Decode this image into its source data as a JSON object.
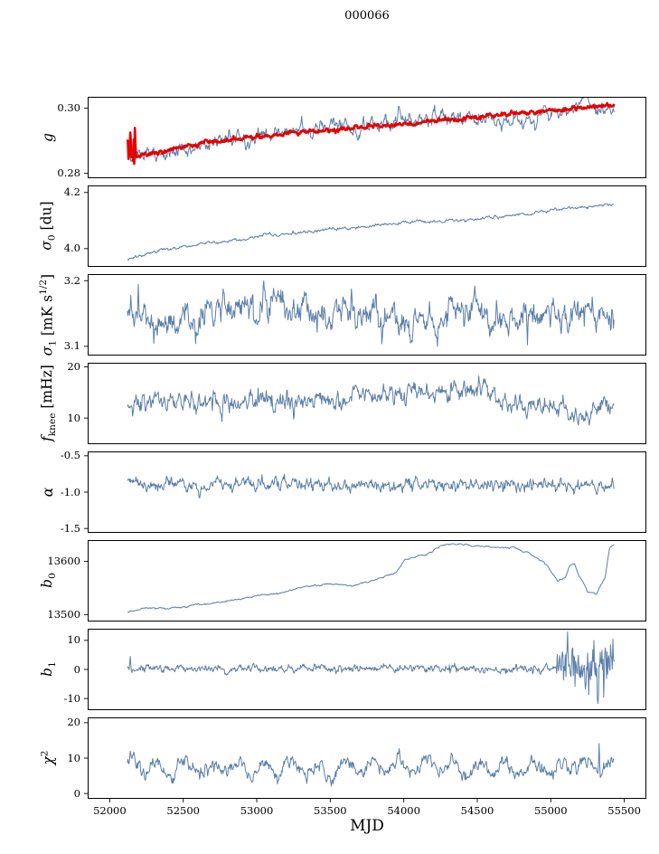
{
  "title": "000066",
  "x_axis": {
    "label": "MJD",
    "range": [
      51850,
      55650
    ],
    "ticks": [
      {
        "v": 52000,
        "label": "52000"
      },
      {
        "v": 52500,
        "label": "52500"
      },
      {
        "v": 53000,
        "label": "53000"
      },
      {
        "v": 53500,
        "label": "53500"
      },
      {
        "v": 54000,
        "label": "54000"
      },
      {
        "v": 54500,
        "label": "54500"
      },
      {
        "v": 55000,
        "label": "55000"
      },
      {
        "v": 55500,
        "label": "55500"
      }
    ]
  },
  "data_x_range": [
    52120,
    55430
  ],
  "colors": {
    "data_line": "#5b7ea8",
    "fit_line": "#e60000",
    "axis": "#000000"
  },
  "chart_data": [
    {
      "type": "line",
      "name": "g",
      "ylabel_html": "<i>g</i>",
      "ylim": [
        0.2785,
        0.3035
      ],
      "yticks": [
        {
          "v": 0.3,
          "label": "0.30"
        },
        {
          "v": 0.28,
          "label": "0.28"
        }
      ],
      "series": [
        {
          "name": "g-data",
          "color": "#5b7ea8",
          "lw": 1,
          "seed": 11,
          "noise": 0.0013,
          "win": 4,
          "noise2": 0.0009,
          "win2": 45,
          "trend": [
            [
              52120,
              0.29
            ],
            [
              52140,
              0.2858
            ],
            [
              52200,
              0.2852
            ],
            [
              52320,
              0.2862
            ],
            [
              52500,
              0.288
            ],
            [
              52700,
              0.2896
            ],
            [
              53000,
              0.2912
            ],
            [
              53300,
              0.2925
            ],
            [
              53600,
              0.2936
            ],
            [
              53900,
              0.2948
            ],
            [
              54200,
              0.2958
            ],
            [
              54500,
              0.2972
            ],
            [
              54800,
              0.2984
            ],
            [
              55100,
              0.2996
            ],
            [
              55300,
              0.3004
            ],
            [
              55430,
              0.3006
            ]
          ]
        },
        {
          "name": "g-fit",
          "color": "#e60000",
          "lw": 2.6,
          "seed": 12,
          "noise": 0.00035,
          "win": 3,
          "noise_regions": [
            {
              "from": 52125,
              "to": 52175,
              "amp": 0.004
            }
          ],
          "trend": [
            [
              52120,
              0.29
            ],
            [
              52140,
              0.2858
            ],
            [
              52200,
              0.2853
            ],
            [
              52320,
              0.2863
            ],
            [
              52500,
              0.2881
            ],
            [
              52700,
              0.2897
            ],
            [
              53000,
              0.2913
            ],
            [
              53300,
              0.2926
            ],
            [
              53600,
              0.2937
            ],
            [
              53900,
              0.2949
            ],
            [
              54200,
              0.2959
            ],
            [
              54500,
              0.2973
            ],
            [
              54800,
              0.2985
            ],
            [
              55100,
              0.2997
            ],
            [
              55300,
              0.3005
            ],
            [
              55430,
              0.3007
            ]
          ]
        }
      ]
    },
    {
      "type": "line",
      "name": "sigma0",
      "ylabel_html": "<i>&#963;</i><sub>0</sub> [du]",
      "ylim": [
        3.935,
        4.225
      ],
      "yticks": [
        {
          "v": 4.2,
          "label": "4.2"
        },
        {
          "v": 4.0,
          "label": "4.0"
        }
      ],
      "series": [
        {
          "name": "sigma0-data",
          "color": "#5b7ea8",
          "lw": 1,
          "seed": 21,
          "noise": 0.0032,
          "win": 4,
          "trend": [
            [
              52120,
              3.962
            ],
            [
              52250,
              3.982
            ],
            [
              52400,
              3.998
            ],
            [
              52600,
              4.015
            ],
            [
              52800,
              4.028
            ],
            [
              53000,
              4.042
            ],
            [
              53200,
              4.052
            ],
            [
              53400,
              4.062
            ],
            [
              53600,
              4.072
            ],
            [
              53800,
              4.082
            ],
            [
              54000,
              4.092
            ],
            [
              54200,
              4.098
            ],
            [
              54400,
              4.103
            ],
            [
              54600,
              4.11
            ],
            [
              54800,
              4.122
            ],
            [
              55000,
              4.136
            ],
            [
              55150,
              4.146
            ],
            [
              55300,
              4.152
            ],
            [
              55430,
              4.158
            ]
          ]
        }
      ]
    },
    {
      "type": "line",
      "name": "sigma1",
      "ylabel_html": "<i>&#963;</i><sub>1</sub> [mK s<sup>1/2</sup>]",
      "ylim": [
        3.086,
        3.21
      ],
      "yticks": [
        {
          "v": 3.2,
          "label": "3.2"
        },
        {
          "v": 3.1,
          "label": "3.1"
        }
      ],
      "series": [
        {
          "name": "sigma1-data",
          "color": "#5b7ea8",
          "lw": 1,
          "seed": 31,
          "noise": 0.012,
          "win": 3,
          "noise2": 0.008,
          "win2": 35,
          "spikes": [
            {
              "x": 52195,
              "amp": 0.042
            },
            {
              "x": 52290,
              "amp": 0.028
            },
            {
              "x": 54840,
              "amp": -0.035
            },
            {
              "x": 55280,
              "amp": 0.03
            }
          ],
          "trend": [
            [
              52120,
              3.148
            ],
            [
              55430,
              3.148
            ]
          ]
        }
      ]
    },
    {
      "type": "line",
      "name": "fknee",
      "ylabel_html": "<i>f</i><sub>knee</sub> [mHz]",
      "ylim": [
        4.9,
        20.8
      ],
      "yticks": [
        {
          "v": 20,
          "label": "20"
        },
        {
          "v": 10,
          "label": "10"
        }
      ],
      "series": [
        {
          "name": "fknee-data",
          "color": "#5b7ea8",
          "lw": 1,
          "seed": 41,
          "noise": 1.05,
          "win": 3,
          "noise2": 0.55,
          "win2": 50,
          "trend": [
            [
              52120,
              12.6
            ],
            [
              52300,
              13.0
            ],
            [
              52600,
              12.8
            ],
            [
              53000,
              13.0
            ],
            [
              53300,
              13.2
            ],
            [
              53600,
              13.4
            ],
            [
              53900,
              14.2
            ],
            [
              54100,
              14.8
            ],
            [
              54300,
              15.2
            ],
            [
              54500,
              14.8
            ],
            [
              54700,
              14.0
            ],
            [
              54900,
              12.8
            ],
            [
              55100,
              12.2
            ],
            [
              55250,
              12.6
            ],
            [
              55430,
              13.2
            ]
          ]
        }
      ]
    },
    {
      "type": "line",
      "name": "alpha",
      "ylabel_html": "<i>&#945;</i>",
      "ylim": [
        -1.56,
        -0.44
      ],
      "yticks": [
        {
          "v": -0.5,
          "label": "-0.5"
        },
        {
          "v": -1.0,
          "label": "-1.0"
        },
        {
          "v": -1.5,
          "label": "-1.5"
        }
      ],
      "series": [
        {
          "name": "alpha-data",
          "color": "#5b7ea8",
          "lw": 1,
          "seed": 51,
          "noise": 0.048,
          "win": 3,
          "trend": [
            [
              52120,
              -0.9
            ],
            [
              55430,
              -0.9
            ]
          ]
        }
      ]
    },
    {
      "type": "line",
      "name": "b0",
      "ylabel_html": "<i>b</i><sub>0</sub>",
      "ylim": [
        13487,
        13640
      ],
      "yticks": [
        {
          "v": 13600,
          "label": "13600"
        },
        {
          "v": 13500,
          "label": "13500"
        }
      ],
      "series": [
        {
          "name": "b0-data",
          "color": "#5b7ea8",
          "lw": 1,
          "seed": 61,
          "noise": 1.2,
          "win": 8,
          "trend": [
            [
              52120,
              13505
            ],
            [
              52200,
              13510
            ],
            [
              52350,
              13513
            ],
            [
              52500,
              13514
            ],
            [
              52650,
              13520
            ],
            [
              52800,
              13527
            ],
            [
              52950,
              13532
            ],
            [
              53050,
              13538
            ],
            [
              53150,
              13540
            ],
            [
              53250,
              13547
            ],
            [
              53350,
              13553
            ],
            [
              53450,
              13557
            ],
            [
              53550,
              13558
            ],
            [
              53650,
              13553
            ],
            [
              53750,
              13560
            ],
            [
              53850,
              13568
            ],
            [
              53950,
              13580
            ],
            [
              54000,
              13600
            ],
            [
              54050,
              13606
            ],
            [
              54150,
              13612
            ],
            [
              54250,
              13630
            ],
            [
              54350,
              13633
            ],
            [
              54450,
              13630
            ],
            [
              54550,
              13628
            ],
            [
              54650,
              13626
            ],
            [
              54750,
              13625
            ],
            [
              54850,
              13615
            ],
            [
              54950,
              13600
            ],
            [
              55000,
              13580
            ],
            [
              55050,
              13562
            ],
            [
              55100,
              13568
            ],
            [
              55130,
              13590
            ],
            [
              55160,
              13595
            ],
            [
              55190,
              13575
            ],
            [
              55220,
              13562
            ],
            [
              55250,
              13545
            ],
            [
              55280,
              13542
            ],
            [
              55310,
              13540
            ],
            [
              55340,
              13558
            ],
            [
              55370,
              13572
            ],
            [
              55400,
              13628
            ],
            [
              55430,
              13632
            ]
          ]
        }
      ]
    },
    {
      "type": "line",
      "name": "b1",
      "ylabel_html": "<i>b</i><sub>1</sub>",
      "ylim": [
        -14,
        14
      ],
      "yticks": [
        {
          "v": 10,
          "label": "10"
        },
        {
          "v": 0,
          "label": "0"
        },
        {
          "v": -10,
          "label": "-10"
        }
      ],
      "series": [
        {
          "name": "b1-data",
          "color": "#5b7ea8",
          "lw": 1,
          "seed": 71,
          "noise": 0.7,
          "win": 3,
          "noise_regions": [
            {
              "from": 55040,
              "to": 55430,
              "amp": 3.0
            }
          ],
          "spikes": [
            {
              "x": 52140,
              "amp": 3.5
            },
            {
              "x": 55115,
              "amp": 11.5
            },
            {
              "x": 55150,
              "amp": 8
            },
            {
              "x": 55230,
              "amp": -6
            },
            {
              "x": 55320,
              "amp": -12
            },
            {
              "x": 55360,
              "amp": -7
            },
            {
              "x": 55390,
              "amp": 5
            }
          ],
          "trend": [
            [
              52120,
              0.3
            ],
            [
              55430,
              0.3
            ]
          ]
        }
      ]
    },
    {
      "type": "line",
      "name": "chi2",
      "ylabel_html": "<i>&#967;</i><sup>2</sup>",
      "ylim": [
        -1.5,
        21.5
      ],
      "yticks": [
        {
          "v": 20,
          "label": "20"
        },
        {
          "v": 10,
          "label": "10"
        },
        {
          "v": 0,
          "label": "0"
        }
      ],
      "series": [
        {
          "name": "chi2-data",
          "color": "#5b7ea8",
          "lw": 1,
          "seed": 81,
          "noise": 1.1,
          "win": 3,
          "noise2": 0.5,
          "win2": 30,
          "osc": {
            "period": 183,
            "amp": 2.1,
            "phase": 1.0
          },
          "spikes": [
            {
              "x": 55330,
              "amp": 8
            }
          ],
          "trend": [
            [
              52120,
              7.3
            ],
            [
              55430,
              7.3
            ]
          ]
        }
      ]
    }
  ]
}
